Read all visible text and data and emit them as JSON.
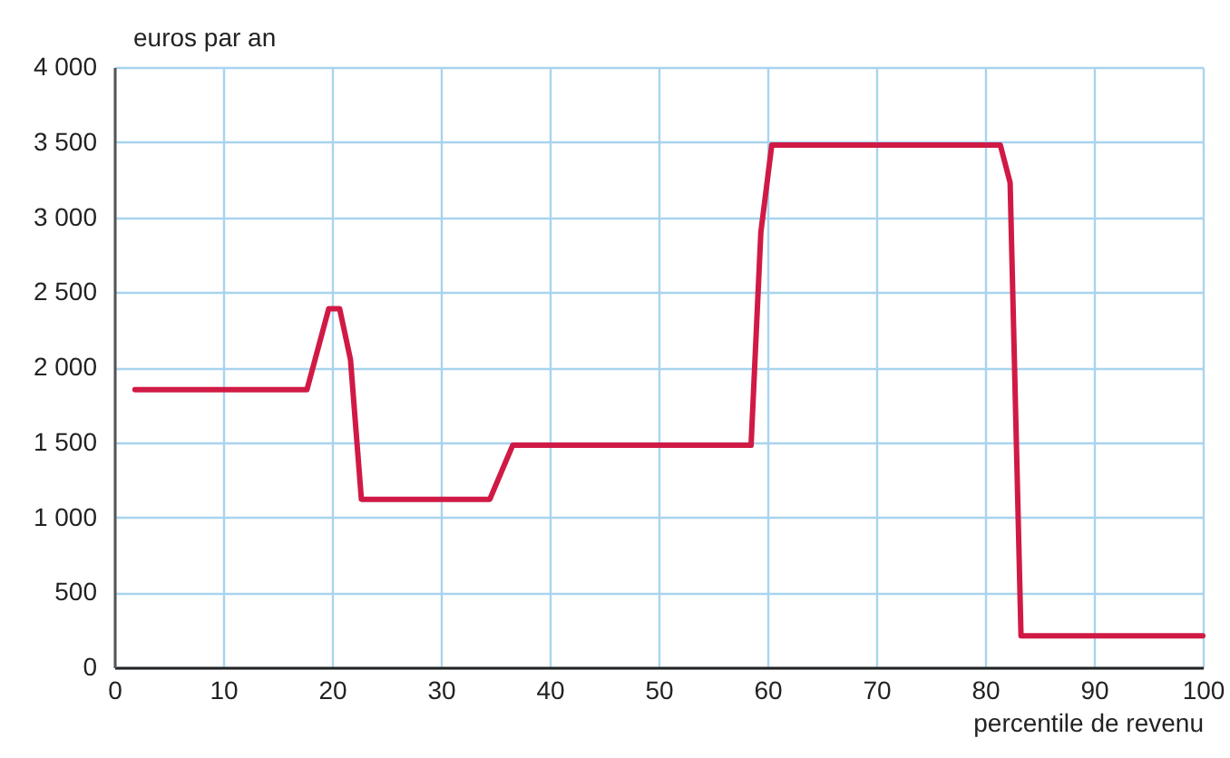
{
  "chart_data": {
    "type": "line",
    "ylabel": "euros par an",
    "xlabel": "percentile de revenu",
    "x": [
      1.9,
      5,
      10,
      15,
      17.7,
      19.7,
      20.7,
      21.7,
      22.7,
      25,
      30,
      34.5,
      36.6,
      40,
      45,
      50,
      55,
      58.5,
      59.4,
      60.4,
      65,
      70,
      75,
      81.4,
      82.3,
      83.3,
      90,
      100
    ],
    "series": [
      {
        "color": "#d01a45",
        "values": [
          1850,
          1850,
          1850,
          1850,
          1850,
          2390,
          2390,
          2050,
          1120,
          1120,
          1120,
          1120,
          1480,
          1480,
          1480,
          1480,
          1480,
          1480,
          2900,
          3480,
          3480,
          3480,
          3480,
          3480,
          3230,
          210,
          210,
          210
        ]
      }
    ],
    "xlim": [
      0,
      100
    ],
    "xticks": [
      0,
      10,
      20,
      30,
      40,
      50,
      60,
      70,
      80,
      90,
      100
    ],
    "ylim": [
      0,
      4000
    ],
    "yticks": [
      0,
      500,
      {
        "value": 1000,
        "label": "1 000"
      },
      {
        "value": 1500,
        "label": "1 500"
      },
      {
        "value": 2000,
        "label": "2 000"
      },
      {
        "value": 2500,
        "label": "2 500"
      },
      {
        "value": 3000,
        "label": "3 000"
      },
      {
        "value": 3500,
        "label": "3 500"
      },
      {
        "value": 4000,
        "label": "4 000"
      }
    ],
    "grid": true,
    "marker": "none",
    "line_style": "solid"
  }
}
